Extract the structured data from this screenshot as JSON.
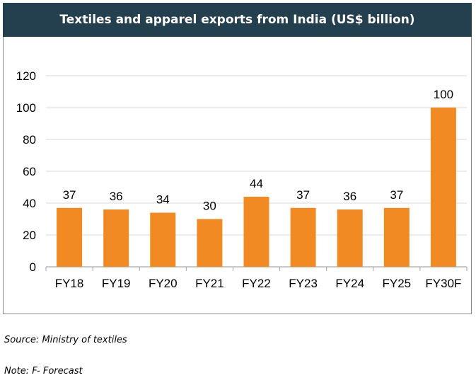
{
  "title": "Textiles and apparel exports from India (US$ billion)",
  "colors": {
    "title_bg": "#243f4d",
    "bar": "#f28a24",
    "grid": "#d9d9d9"
  },
  "chart_data": {
    "type": "bar",
    "categories": [
      "FY18",
      "FY19",
      "FY20",
      "FY21",
      "FY22",
      "FY23",
      "FY24",
      "FY25",
      "FY30F"
    ],
    "values": [
      37,
      36,
      34,
      30,
      44,
      37,
      36,
      37,
      100
    ],
    "labels": [
      "37",
      "36",
      "34",
      "30",
      "44",
      "37",
      "36",
      "37",
      "100"
    ],
    "yticks": [
      "0",
      "20",
      "40",
      "60",
      "80",
      "100",
      "120"
    ],
    "ylim": [
      0,
      120
    ],
    "grid": true
  },
  "footer": {
    "source": "Source: Ministry of textiles",
    "note": "Note: F- Forecast"
  }
}
